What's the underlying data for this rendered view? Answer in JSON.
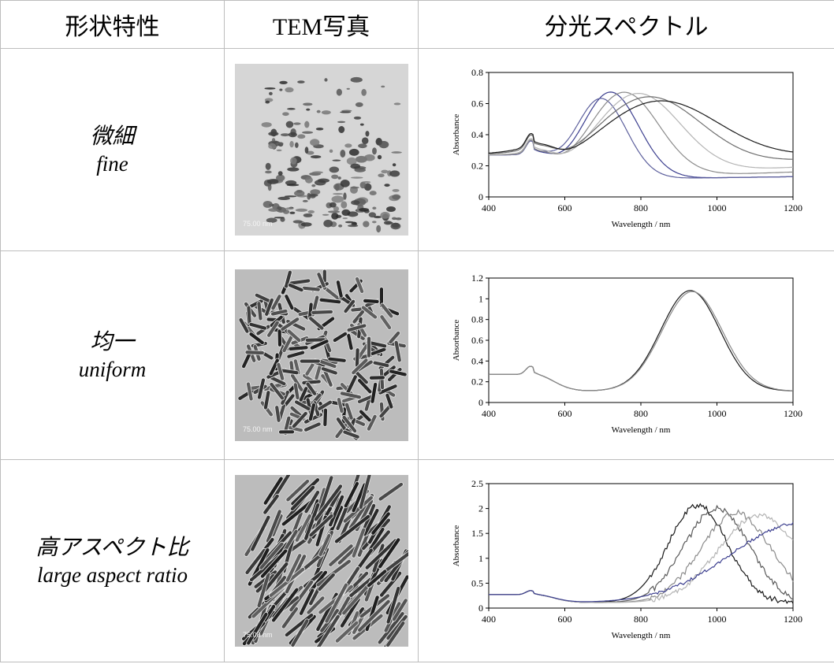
{
  "headers": {
    "property": "形状特性",
    "tem": "TEM写真",
    "spectrum": "分光スペクトル"
  },
  "rows": [
    {
      "prop_jp": "微細",
      "prop_en": "fine",
      "tem_scale_label": "75.00 nm",
      "chart_data": {
        "type": "line",
        "xlabel": "Wavelength / nm",
        "ylabel": "Absorbance",
        "xlim": [
          400,
          1200
        ],
        "ylim": [
          0,
          0.8
        ],
        "xticks": [
          400,
          600,
          800,
          1000,
          1200
        ],
        "yticks": [
          0,
          0.2,
          0.4,
          0.6,
          0.8
        ],
        "series": [
          {
            "color": "#3c3f8f",
            "peak_x": 720,
            "peak_y": 0.56,
            "width": 105,
            "tail": 0.02
          },
          {
            "color": "#5c5f9c",
            "peak_x": 695,
            "peak_y": 0.52,
            "width": 95,
            "tail": 0.02
          },
          {
            "color": "#8a8a8a",
            "peak_x": 755,
            "peak_y": 0.55,
            "width": 130,
            "tail": 0.05
          },
          {
            "color": "#b4b4b4",
            "peak_x": 790,
            "peak_y": 0.53,
            "width": 160,
            "tail": 0.08
          },
          {
            "color": "#6e6e6e",
            "peak_x": 815,
            "peak_y": 0.49,
            "width": 200,
            "tail": 0.12
          },
          {
            "color": "#1a1a1a",
            "peak_x": 840,
            "peak_y": 0.45,
            "width": 230,
            "tail": 0.14
          }
        ]
      }
    },
    {
      "prop_jp": "均一",
      "prop_en": "uniform",
      "tem_scale_label": "75.00 nm",
      "chart_data": {
        "type": "line",
        "xlabel": "Wavelength / nm",
        "ylabel": "Absorbance",
        "xlim": [
          400,
          1200
        ],
        "ylim": [
          0,
          1.2
        ],
        "xticks": [
          400,
          600,
          800,
          1000,
          1200
        ],
        "yticks": [
          0,
          0.2,
          0.4,
          0.6,
          0.8,
          1,
          1.2
        ],
        "series": [
          {
            "color": "#1a1a1a",
            "peak_x": 930,
            "peak_y": 0.97,
            "width": 110,
            "tail": 0.0
          },
          {
            "color": "#8a8a8a",
            "peak_x": 935,
            "peak_y": 0.96,
            "width": 112,
            "tail": 0.0
          }
        ]
      }
    },
    {
      "prop_jp": "高アスペクト比",
      "prop_en": "large aspect ratio",
      "tem_scale_label": "75.00 nm",
      "chart_data": {
        "type": "line",
        "xlabel": "Wavelength / nm",
        "ylabel": "Absorbance",
        "xlim": [
          400,
          1200
        ],
        "ylim": [
          0,
          2.5
        ],
        "xticks": [
          400,
          600,
          800,
          1000,
          1200
        ],
        "yticks": [
          0,
          0.5,
          1,
          1.5,
          2,
          2.5
        ],
        "series": [
          {
            "color": "#1a1a1a",
            "peak_x": 950,
            "peak_y": 1.95,
            "width": 110,
            "tail": 0.0,
            "noise": 0.06
          },
          {
            "color": "#5a5a5a",
            "peak_x": 1000,
            "peak_y": 1.9,
            "width": 120,
            "tail": 0.0,
            "noise": 0.06
          },
          {
            "color": "#8a8a8a",
            "peak_x": 1050,
            "peak_y": 1.8,
            "width": 130,
            "tail": 0.0,
            "noise": 0.06
          },
          {
            "color": "#b4b4b4",
            "peak_x": 1110,
            "peak_y": 1.75,
            "width": 150,
            "tail": 0.0,
            "noise": 0.05
          },
          {
            "color": "#3c3f8f",
            "peak_x": 1220,
            "peak_y": 1.6,
            "width": 260,
            "tail": 0.0,
            "noise": 0.03
          }
        ]
      }
    }
  ]
}
